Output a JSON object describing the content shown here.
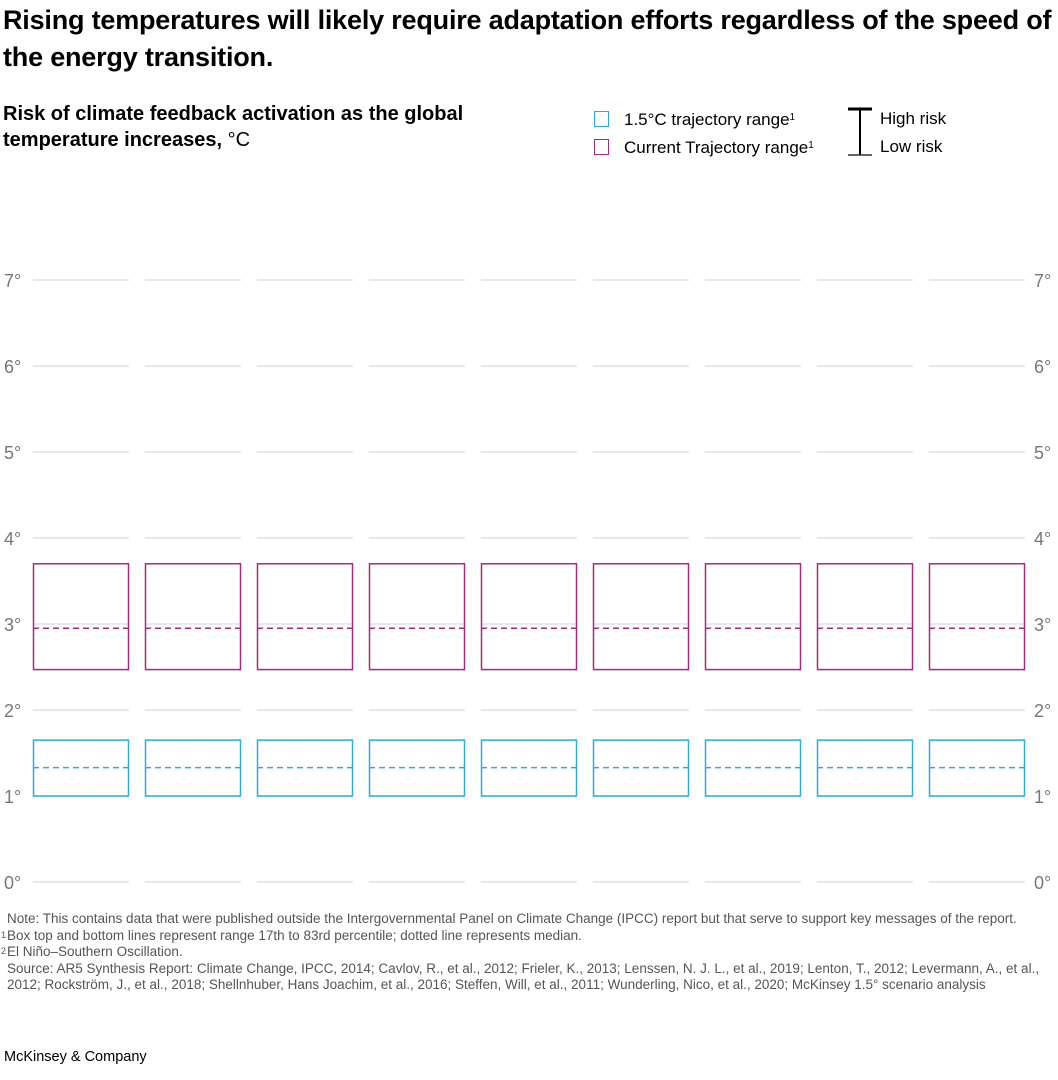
{
  "title": "Rising temperatures will likely require adaptation efforts regardless of the speed of the energy transition.",
  "subtitle": {
    "bold": "Risk of climate feedback activation as the global temperature increases,",
    "unit": " °C"
  },
  "legend": {
    "items": [
      {
        "label": "1.5°C trajectory range",
        "sup": "1",
        "color": "#29abe2"
      },
      {
        "label": "Current Trajectory range",
        "sup": "1",
        "color": "#a9287f"
      }
    ],
    "high_risk": "High risk",
    "low_risk": "Low risk"
  },
  "chart_data": {
    "type": "box",
    "ylim": [
      0,
      7
    ],
    "yticks": [
      "0°",
      "1°",
      "2°",
      "3°",
      "4°",
      "5°",
      "6°",
      "7°"
    ],
    "grid": true,
    "legend_position": "top-right",
    "column_count": 9,
    "series": [
      {
        "name": "1.5°C trajectory range",
        "color": "#29abe2",
        "low": 1.0,
        "median": 1.33,
        "high": 1.65
      },
      {
        "name": "Current Trajectory range",
        "color": "#a9287f",
        "low": 2.47,
        "median": 2.95,
        "high": 3.7
      }
    ]
  },
  "notes": {
    "note": "Note: This contains data that were published outside the Intergovernmental Panel on Climate Change (IPCC) report but that serve to support key messages of the report.",
    "footnotes": [
      {
        "sup": "1",
        "text": "Box top and bottom lines represent range 17th to 83rd percentile; dotted line represents median."
      },
      {
        "sup": "2",
        "text": "El Niño–Southern Oscillation."
      }
    ],
    "source": "Source: AR5 Synthesis Report: Climate Change, IPCC, 2014; Cavlov, R., et al., 2012; Frieler, K., 2013; Lenssen, N. J. L., et al., 2019; Lenton, T., 2012; Levermann, A., et al., 2012; Rockström, J., et al., 2018; Shellnhuber, Hans Joachim, et al., 2016; Steffen, Will, et al., 2011; Wunderling, Nico, et al., 2020; McKinsey 1.5° scenario analysis"
  },
  "brand": "McKinsey & Company"
}
